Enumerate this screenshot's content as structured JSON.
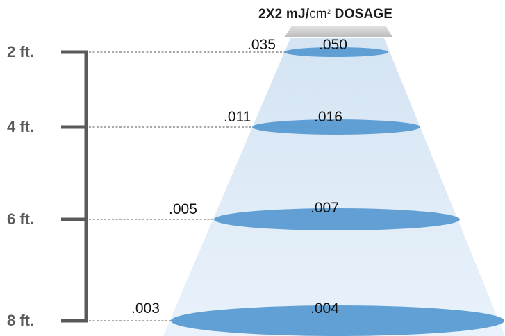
{
  "title": {
    "prefix": "2X2 mJ/",
    "unit": "cm",
    "superscript": "2",
    "suffix": "DOSAGE"
  },
  "rows": [
    {
      "distance": "2 ft.",
      "outer_value": ".035",
      "center_value": ".050"
    },
    {
      "distance": "4 ft.",
      "outer_value": ".011",
      "center_value": ".016"
    },
    {
      "distance": "6 ft.",
      "outer_value": ".005",
      "center_value": ".007"
    },
    {
      "distance": "8 ft.",
      "outer_value": ".003",
      "center_value": ".004"
    }
  ],
  "colors": {
    "ellipse": "#5a9bd2",
    "beam_top": "#d6e5f3",
    "beam_bottom": "#e8f1fa",
    "bracket": "#5a5a5a",
    "dashed_line": "#777777",
    "lamp": "#cfcfcf"
  }
}
